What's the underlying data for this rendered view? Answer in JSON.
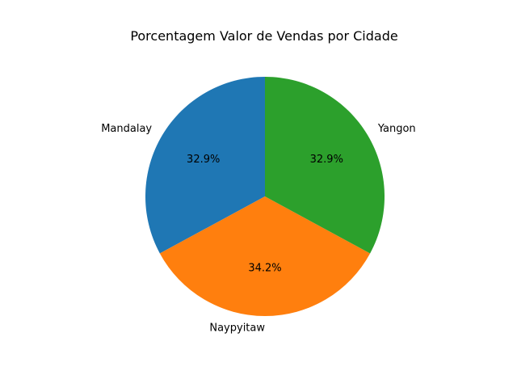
{
  "chart_data": {
    "type": "pie",
    "title": "Porcentagem Valor de Vendas por Cidade",
    "start_angle_deg": 90,
    "direction": "counterclockwise",
    "legend": "none",
    "slices": [
      {
        "label": "Mandalay",
        "value": 32.9,
        "pct_label": "32.9%",
        "color": "#1f77b4"
      },
      {
        "label": "Naypyitaw",
        "value": 34.2,
        "pct_label": "34.2%",
        "color": "#ff7f0e"
      },
      {
        "label": "Yangon",
        "value": 32.9,
        "pct_label": "32.9%",
        "color": "#2ca02c"
      }
    ]
  }
}
